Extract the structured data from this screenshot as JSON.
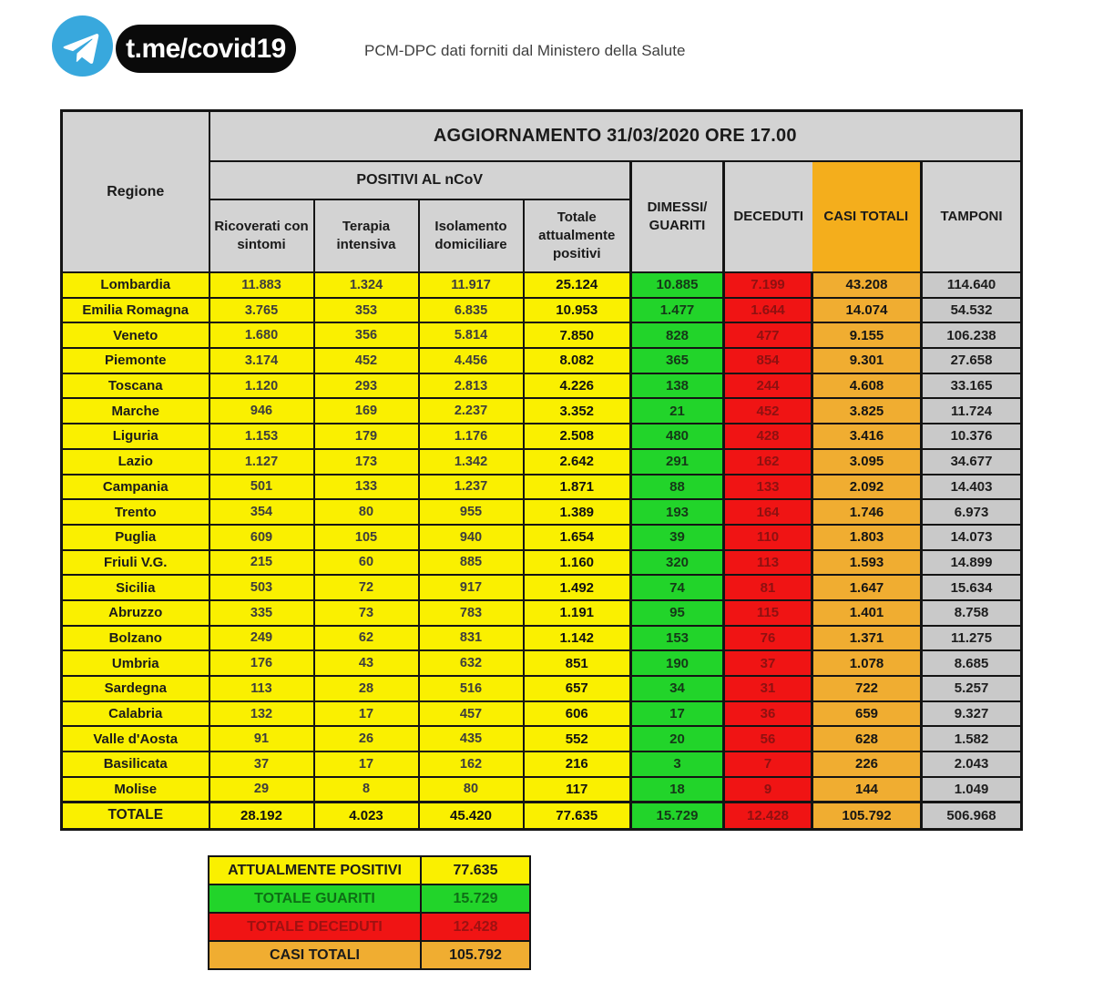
{
  "header": {
    "telegram_handle": "t.me/covid19",
    "subtitle": "PCM-DPC dati forniti dal Ministero della Salute"
  },
  "table": {
    "group_header": "POSITIVI AL nCoV",
    "dimessi_lines": [
      "DIMESSI/",
      "GUARITI"
    ]
  },
  "chart_data": {
    "type": "table",
    "title": "AGGIORNAMENTO 31/03/2020 ORE 17.00",
    "columns": [
      "Regione",
      "Ricoverati con sintomi",
      "Terapia intensiva",
      "Isolamento domiciliare",
      "Totale attualmente positivi",
      "DIMESSI/GUARITI",
      "DECEDUTI",
      "CASI TOTALI",
      "TAMPONI"
    ],
    "rows": [
      [
        "Lombardia",
        "11.883",
        "1.324",
        "11.917",
        "25.124",
        "10.885",
        "7.199",
        "43.208",
        "114.640"
      ],
      [
        "Emilia Romagna",
        "3.765",
        "353",
        "6.835",
        "10.953",
        "1.477",
        "1.644",
        "14.074",
        "54.532"
      ],
      [
        "Veneto",
        "1.680",
        "356",
        "5.814",
        "7.850",
        "828",
        "477",
        "9.155",
        "106.238"
      ],
      [
        "Piemonte",
        "3.174",
        "452",
        "4.456",
        "8.082",
        "365",
        "854",
        "9.301",
        "27.658"
      ],
      [
        "Toscana",
        "1.120",
        "293",
        "2.813",
        "4.226",
        "138",
        "244",
        "4.608",
        "33.165"
      ],
      [
        "Marche",
        "946",
        "169",
        "2.237",
        "3.352",
        "21",
        "452",
        "3.825",
        "11.724"
      ],
      [
        "Liguria",
        "1.153",
        "179",
        "1.176",
        "2.508",
        "480",
        "428",
        "3.416",
        "10.376"
      ],
      [
        "Lazio",
        "1.127",
        "173",
        "1.342",
        "2.642",
        "291",
        "162",
        "3.095",
        "34.677"
      ],
      [
        "Campania",
        "501",
        "133",
        "1.237",
        "1.871",
        "88",
        "133",
        "2.092",
        "14.403"
      ],
      [
        "Trento",
        "354",
        "80",
        "955",
        "1.389",
        "193",
        "164",
        "1.746",
        "6.973"
      ],
      [
        "Puglia",
        "609",
        "105",
        "940",
        "1.654",
        "39",
        "110",
        "1.803",
        "14.073"
      ],
      [
        "Friuli V.G.",
        "215",
        "60",
        "885",
        "1.160",
        "320",
        "113",
        "1.593",
        "14.899"
      ],
      [
        "Sicilia",
        "503",
        "72",
        "917",
        "1.492",
        "74",
        "81",
        "1.647",
        "15.634"
      ],
      [
        "Abruzzo",
        "335",
        "73",
        "783",
        "1.191",
        "95",
        "115",
        "1.401",
        "8.758"
      ],
      [
        "Bolzano",
        "249",
        "62",
        "831",
        "1.142",
        "153",
        "76",
        "1.371",
        "11.275"
      ],
      [
        "Umbria",
        "176",
        "43",
        "632",
        "851",
        "190",
        "37",
        "1.078",
        "8.685"
      ],
      [
        "Sardegna",
        "113",
        "28",
        "516",
        "657",
        "34",
        "31",
        "722",
        "5.257"
      ],
      [
        "Calabria",
        "132",
        "17",
        "457",
        "606",
        "17",
        "36",
        "659",
        "9.327"
      ],
      [
        "Valle d'Aosta",
        "91",
        "26",
        "435",
        "552",
        "20",
        "56",
        "628",
        "1.582"
      ],
      [
        "Basilicata",
        "37",
        "17",
        "162",
        "216",
        "3",
        "7",
        "226",
        "2.043"
      ],
      [
        "Molise",
        "29",
        "8",
        "80",
        "117",
        "18",
        "9",
        "144",
        "1.049"
      ]
    ],
    "total_row": [
      "TOTALE",
      "28.192",
      "4.023",
      "45.420",
      "77.635",
      "15.729",
      "12.428",
      "105.792",
      "506.968"
    ],
    "summary": [
      {
        "label": "ATTUALMENTE POSITIVI",
        "value": "77.635",
        "color": "yellow"
      },
      {
        "label": "TOTALE GUARITI",
        "value": "15.729",
        "color": "green"
      },
      {
        "label": "TOTALE DECEDUTI",
        "value": "12.428",
        "color": "red"
      },
      {
        "label": "CASI TOTALI",
        "value": "105.792",
        "color": "orange"
      }
    ]
  },
  "colors": {
    "yellow": "#FAF000",
    "green": "#22D42A",
    "red": "#F01414",
    "orange_header": "#F4AE1C",
    "orange_cell": "#F0AD31",
    "header_gray": "#D3D3D3",
    "cell_gray": "#C9C9C9",
    "border": "#141414",
    "telegram_blue": "#38A8DD",
    "green_text": "#153818",
    "red_text": "#8E1111",
    "summary_green_text": "#0E6E16",
    "summary_red_text": "#9E1111"
  }
}
